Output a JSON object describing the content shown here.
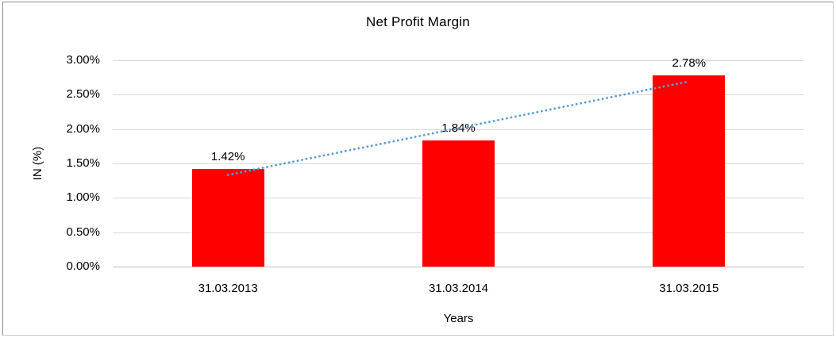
{
  "frame": {
    "background": "#ffffff",
    "border_color": "#8f8f8f"
  },
  "chart_data": {
    "type": "bar",
    "title": "Net Profit Margin",
    "categories": [
      "31.03.2013",
      "31.03.2014",
      "31.03.2015"
    ],
    "values": [
      1.42,
      1.84,
      2.78
    ],
    "data_labels": [
      "1.42%",
      "1.84%",
      "2.78%"
    ],
    "xlabel": "Years",
    "ylabel": "IN (%)",
    "ylim": [
      0,
      3.0
    ],
    "ytick_step": 0.5,
    "ytick_labels": [
      "0.00%",
      "0.50%",
      "1.00%",
      "1.50%",
      "2.00%",
      "2.50%",
      "3.00%"
    ],
    "grid": true,
    "legend": "none",
    "bar_color": "#ff0000",
    "gridline_color": "#d9d9d9",
    "axis_line_color": "#bfbfbf",
    "text_color": "#000000",
    "trendline": {
      "type": "linear",
      "style": "dotted",
      "color": "#5b9bd5"
    }
  }
}
